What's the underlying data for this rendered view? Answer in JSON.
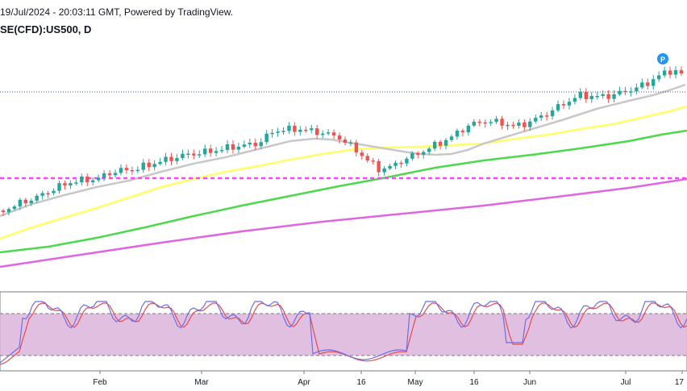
{
  "header": {
    "timestamp": "19/Jul/2024 - 20:03:11 GMT, Powered by TradingView.",
    "symbol": "SE(CFD):US500, D"
  },
  "colors": {
    "candle_up": "#26a69a",
    "candle_down": "#ef5350",
    "sma_fast": "#c8c8c8",
    "sma_mid": "#ffff66",
    "sma_slow": "#4cd94c",
    "sma_long": "#e066e0",
    "level_line": "#ff44ff",
    "last_price_line": "#3f51b5",
    "stoch_k": "#6e6ee8",
    "stoch_d": "#e84c4c",
    "stoch_band": "#dcb4dc"
  },
  "marker": {
    "label": "P"
  },
  "chart_data": [
    {
      "type": "candlestick",
      "title": "",
      "x_ticks": [
        "Feb",
        "Mar",
        "Apr",
        "16",
        "May",
        "16",
        "Jun",
        "Jul",
        "17"
      ],
      "ohlc": [],
      "level_lines": [
        "dashed magenta horizontal",
        "dotted blue last-price"
      ]
    },
    {
      "type": "line",
      "title": "",
      "series": [
        {
          "values": []
        },
        {
          "values": []
        }
      ],
      "band": [
        20,
        80
      ],
      "ylim": [
        0,
        100
      ]
    }
  ]
}
